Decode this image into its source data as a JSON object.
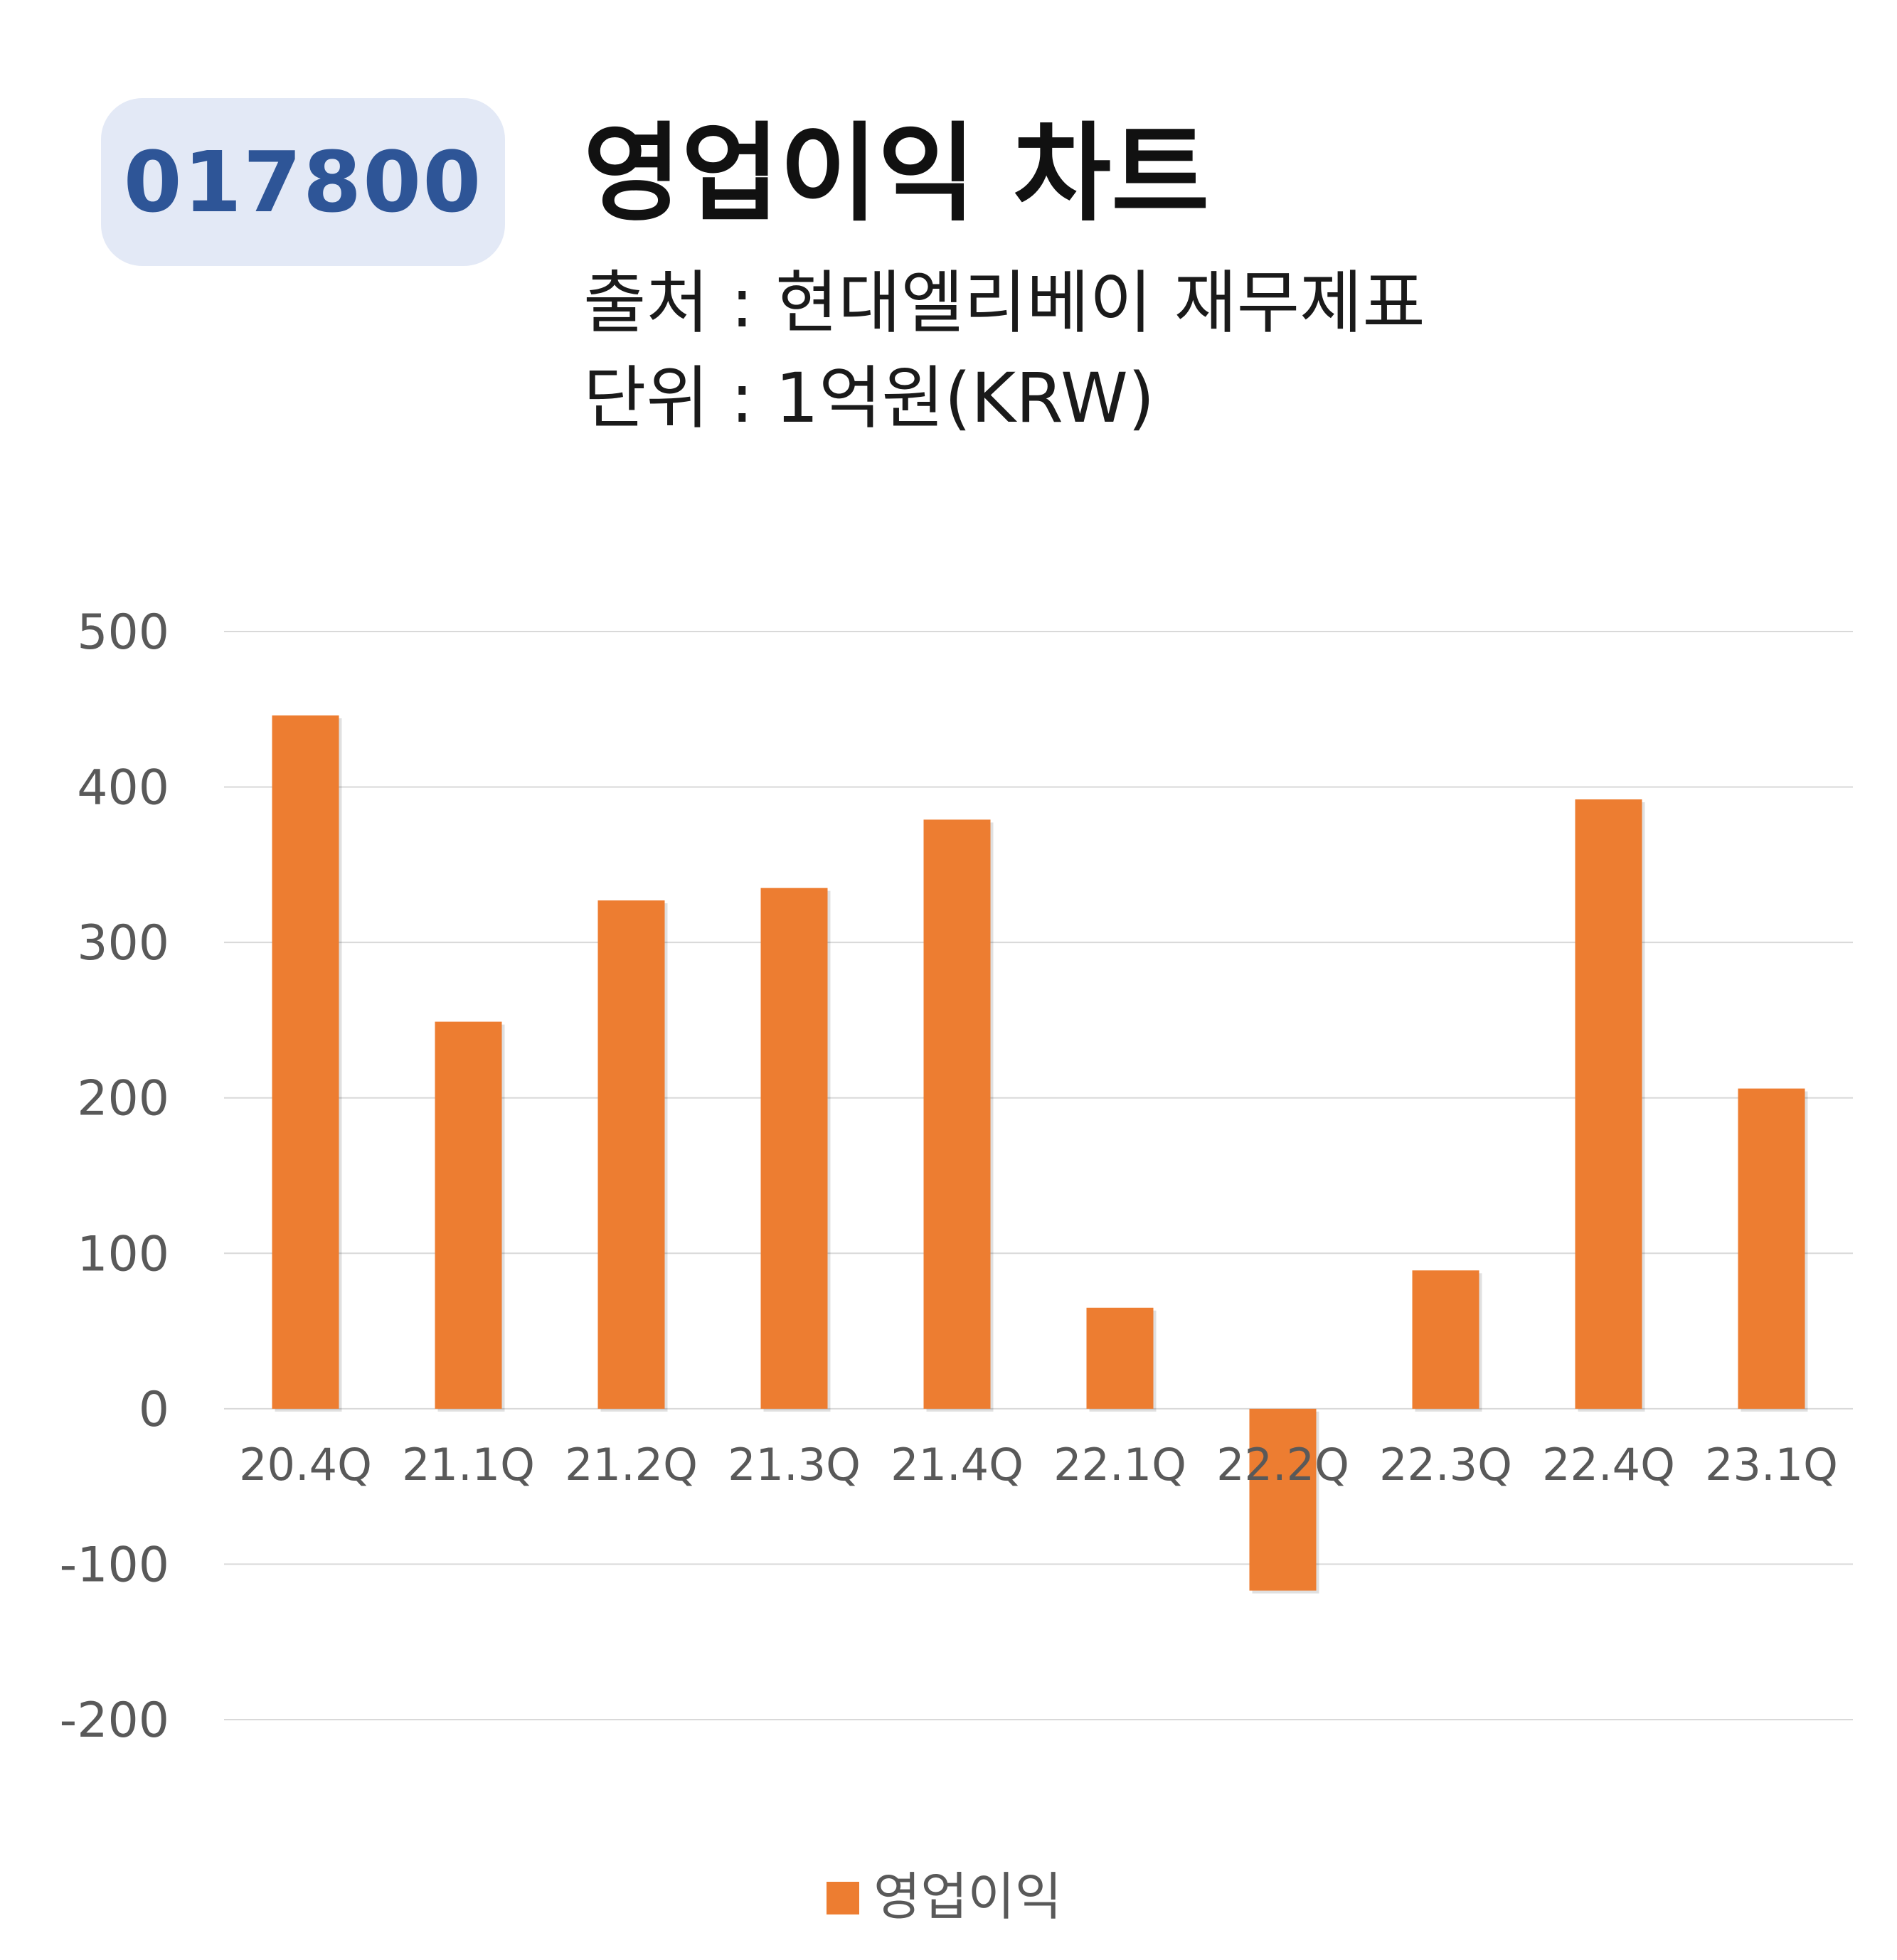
{
  "ticker": "017800",
  "header": {
    "title": "영업이익 차트",
    "source": "출처 : 현대엘리베이 재무제표",
    "unit": "단위 : 1억원(KRW)"
  },
  "colors": {
    "bar": "#ed7d31",
    "grid": "#d9d9d9",
    "badge_bg": "#e3e9f6",
    "badge_text": "#2e5597"
  },
  "chart_data": {
    "type": "bar",
    "categories": [
      "20.4Q",
      "21.1Q",
      "21.2Q",
      "21.3Q",
      "21.4Q",
      "22.1Q",
      "22.2Q",
      "22.3Q",
      "22.4Q",
      "23.1Q"
    ],
    "series": [
      {
        "name": "영업이익",
        "values": [
          446,
          249,
          327,
          335,
          379,
          65,
          -117,
          89,
          392,
          206
        ]
      }
    ],
    "yticks": [
      -200,
      -100,
      0,
      100,
      200,
      300,
      400,
      500
    ],
    "ylim": [
      -200,
      500
    ],
    "grid": true,
    "legend": "bottom"
  }
}
